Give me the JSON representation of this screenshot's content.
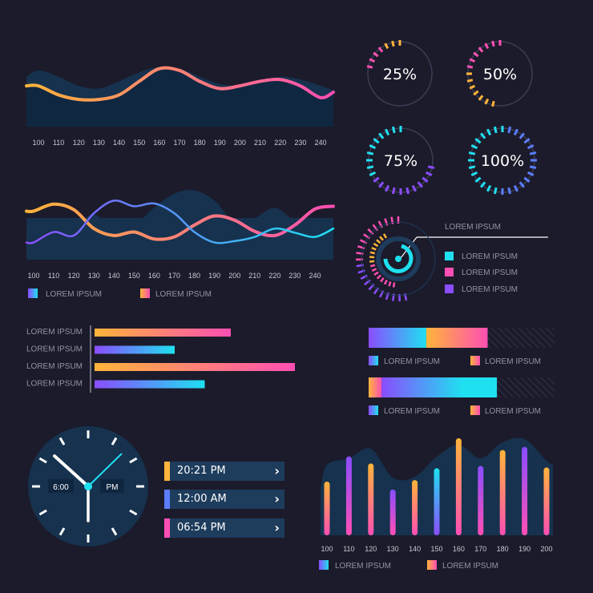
{
  "colors": {
    "background": "#1c1b2b",
    "panel": "#16324e",
    "orange": "#ffb43a",
    "pink": "#ff4fb3",
    "purple": "#8a4dff",
    "cyan": "#1fe0f0"
  },
  "chart_data": [
    {
      "type": "area",
      "x": [
        100,
        110,
        120,
        130,
        140,
        150,
        160,
        170,
        180,
        190,
        200,
        210,
        220,
        230,
        240
      ],
      "series": [
        {
          "values": [
            0.62,
            0.55,
            0.45,
            0.42,
            0.5,
            0.6,
            0.66,
            0.64,
            0.55,
            0.47,
            0.45,
            0.48,
            0.55,
            0.52,
            0.45
          ]
        },
        {
          "values": [
            0.45,
            0.35,
            0.3,
            0.3,
            0.35,
            0.5,
            0.64,
            0.62,
            0.5,
            0.42,
            0.45,
            0.5,
            0.52,
            0.45,
            0.32
          ]
        }
      ],
      "x_ticks": [
        "100",
        "110",
        "120",
        "130",
        "140",
        "150",
        "160",
        "170",
        "180",
        "190",
        "200",
        "210",
        "220",
        "230",
        "240"
      ]
    },
    {
      "type": "line",
      "x": [
        100,
        110,
        120,
        130,
        140,
        150,
        160,
        170,
        180,
        190,
        200,
        210,
        220,
        230,
        240
      ],
      "series": [
        {
          "values": [
            0.65,
            0.75,
            0.67,
            0.4,
            0.3,
            0.35,
            0.25,
            0.28,
            0.45,
            0.58,
            0.52,
            0.36,
            0.3,
            0.45,
            0.68
          ]
        },
        {
          "values": [
            0.2,
            0.35,
            0.3,
            0.62,
            0.8,
            0.72,
            0.76,
            0.62,
            0.35,
            0.2,
            0.22,
            0.28,
            0.4,
            0.34,
            0.28
          ]
        }
      ],
      "x_ticks": [
        "100",
        "110",
        "120",
        "130",
        "140",
        "150",
        "160",
        "170",
        "180",
        "190",
        "200",
        "210",
        "220",
        "230",
        "240"
      ],
      "legend": [
        "LOREM IPSUM",
        "LOREM IPSUM"
      ]
    },
    {
      "type": "pie",
      "gauges": [
        {
          "label": "25%",
          "value": 25
        },
        {
          "label": "50%",
          "value": 50
        },
        {
          "label": "75%",
          "value": 75
        },
        {
          "label": "100%",
          "value": 100
        }
      ]
    },
    {
      "type": "pie",
      "title": "LOREM IPSUM",
      "legend": [
        "LOREM IPSUM",
        "LOREM IPSUM",
        "LOREM IPSUM"
      ]
    },
    {
      "type": "bar",
      "orientation": "horizontal",
      "categories": [
        "LOREM IPSUM",
        "LOREM IPSUM",
        "LOREM IPSUM",
        "LOREM IPSUM"
      ],
      "values": [
        68,
        40,
        100,
        55
      ]
    },
    {
      "type": "bar",
      "orientation": "stacked-horizontal",
      "rows": [
        {
          "segments": [
            31,
            33
          ],
          "total_track": 100,
          "legend": [
            "LOREM IPSUM",
            "LOREM IPSUM"
          ]
        },
        {
          "segments": [
            7,
            62
          ],
          "total_track": 100,
          "legend": [
            "LOREM IPSUM",
            "LOREM IPSUM"
          ]
        }
      ]
    },
    {
      "type": "bar",
      "categories": [
        "100",
        "110",
        "120",
        "130",
        "140",
        "150",
        "160",
        "170",
        "180",
        "190",
        "200"
      ],
      "values": [
        68,
        100,
        91,
        58,
        70,
        85,
        123,
        88,
        108,
        112,
        86
      ],
      "ylim": [
        0,
        130
      ],
      "legend": [
        "LOREM IPSUM",
        "LOREM IPSUM"
      ]
    }
  ],
  "clock": {
    "time_label": "6:00",
    "ampm_label": "PM"
  },
  "times": [
    {
      "time": "20:21 PM",
      "chevron": "›"
    },
    {
      "time": "12:00 AM",
      "chevron": "›"
    },
    {
      "time": "06:54 PM",
      "chevron": "›"
    }
  ]
}
